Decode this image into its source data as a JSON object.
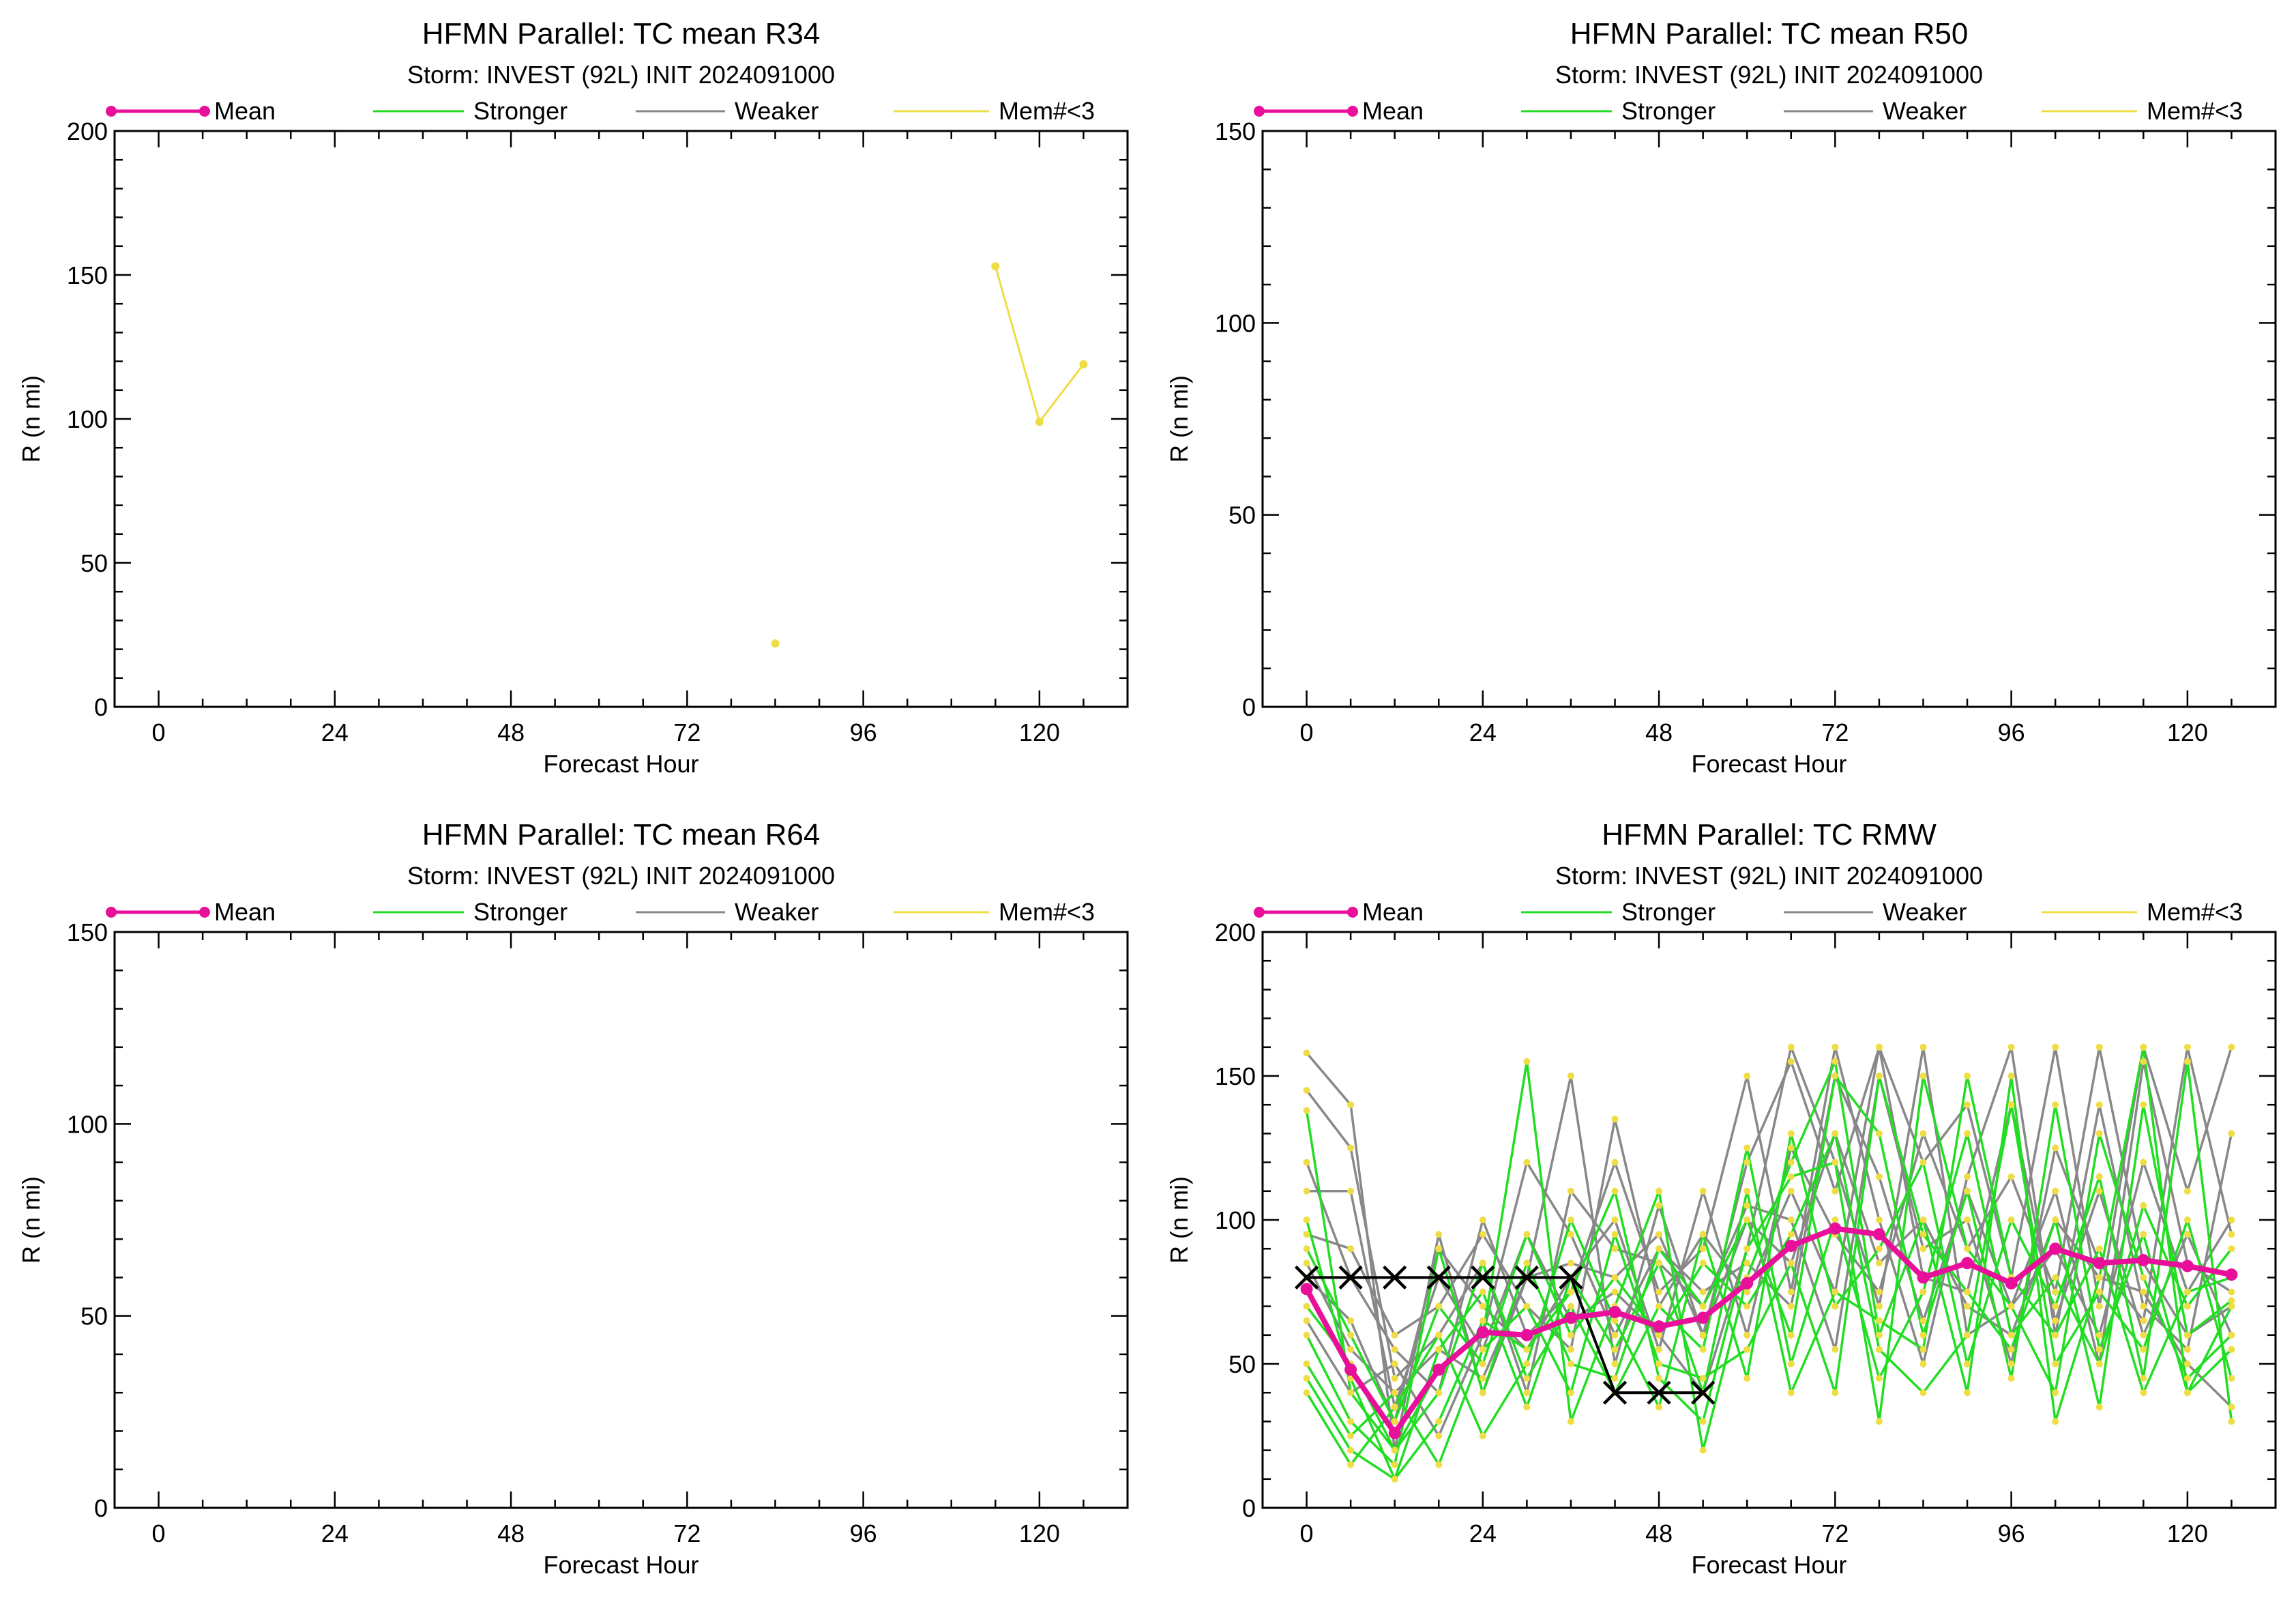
{
  "chart_data": [
    {
      "id": "r34",
      "type": "line",
      "title": "HFMN Parallel: TC mean R34",
      "subtitle": "Storm: INVEST (92L) INIT 2024091000",
      "xlabel": "Forecast Hour",
      "ylabel": "R (n mi)",
      "xlim": [
        -6,
        132
      ],
      "ylim": [
        0,
        200
      ],
      "xticks": [
        0,
        24,
        48,
        72,
        96,
        120
      ],
      "yticks": [
        0,
        50,
        100,
        150,
        200
      ],
      "legend": [
        {
          "name": "Mean",
          "color": "#e8109a",
          "marker": true
        },
        {
          "name": "Stronger",
          "color": "#22dd22"
        },
        {
          "name": "Weaker",
          "color": "#888888"
        },
        {
          "name": "Mem#<3",
          "color": "#eedd44"
        }
      ],
      "series": [
        {
          "kind": "mem",
          "x": [
            84
          ],
          "y": [
            22
          ]
        },
        {
          "kind": "mem",
          "x": [
            114,
            120,
            126
          ],
          "y": [
            153,
            99,
            119
          ]
        }
      ]
    },
    {
      "id": "r50",
      "type": "line",
      "title": "HFMN Parallel: TC mean R50",
      "subtitle": "Storm: INVEST (92L) INIT 2024091000",
      "xlabel": "Forecast Hour",
      "ylabel": "R (n mi)",
      "xlim": [
        -6,
        132
      ],
      "ylim": [
        0,
        150
      ],
      "xticks": [
        0,
        24,
        48,
        72,
        96,
        120
      ],
      "yticks": [
        0,
        50,
        100,
        150
      ],
      "legend": [
        {
          "name": "Mean",
          "color": "#e8109a",
          "marker": true
        },
        {
          "name": "Stronger",
          "color": "#22dd22"
        },
        {
          "name": "Weaker",
          "color": "#888888"
        },
        {
          "name": "Mem#<3",
          "color": "#eedd44"
        }
      ],
      "series": []
    },
    {
      "id": "r64",
      "type": "line",
      "title": "HFMN Parallel: TC mean R64",
      "subtitle": "Storm: INVEST (92L) INIT 2024091000",
      "xlabel": "Forecast Hour",
      "ylabel": "R (n mi)",
      "xlim": [
        -6,
        132
      ],
      "ylim": [
        0,
        150
      ],
      "xticks": [
        0,
        24,
        48,
        72,
        96,
        120
      ],
      "yticks": [
        0,
        50,
        100,
        150
      ],
      "legend": [
        {
          "name": "Mean",
          "color": "#e8109a",
          "marker": true
        },
        {
          "name": "Stronger",
          "color": "#22dd22"
        },
        {
          "name": "Weaker",
          "color": "#888888"
        },
        {
          "name": "Mem#<3",
          "color": "#eedd44"
        }
      ],
      "series": []
    },
    {
      "id": "rmw",
      "type": "line",
      "title": "HFMN Parallel: TC RMW",
      "subtitle": "Storm: INVEST (92L) INIT 2024091000",
      "xlabel": "Forecast Hour",
      "ylabel": "R (n mi)",
      "xlim": [
        -6,
        132
      ],
      "ylim": [
        0,
        200
      ],
      "xticks": [
        0,
        24,
        48,
        72,
        96,
        120
      ],
      "yticks": [
        0,
        50,
        100,
        150,
        200
      ],
      "legend": [
        {
          "name": "Mean",
          "color": "#e8109a",
          "marker": true
        },
        {
          "name": "Stronger",
          "color": "#22dd22"
        },
        {
          "name": "Weaker",
          "color": "#888888"
        },
        {
          "name": "Mem#<3",
          "color": "#eedd44"
        }
      ],
      "x_common": [
        0,
        6,
        12,
        18,
        24,
        30,
        36,
        42,
        48,
        54,
        60,
        66,
        72,
        78,
        84,
        90,
        96,
        102,
        108,
        114,
        120,
        126
      ],
      "mean": {
        "x": [
          0,
          6,
          12,
          18,
          24,
          30,
          36,
          42,
          48,
          54,
          60,
          66,
          72,
          78,
          84,
          90,
          96,
          102,
          108,
          114,
          120,
          126
        ],
        "y": [
          76,
          48,
          26,
          48,
          61,
          60,
          66,
          68,
          63,
          66,
          78,
          91,
          97,
          95,
          80,
          85,
          78,
          90,
          85,
          86,
          84,
          81
        ]
      },
      "cross_track": {
        "x": [
          0,
          6,
          12,
          18,
          24,
          30,
          36,
          42,
          48,
          54
        ],
        "y": [
          80,
          80,
          80,
          80,
          80,
          80,
          80,
          40,
          40,
          40
        ]
      },
      "stronger": [
        [
          138,
          40,
          20,
          48,
          60,
          155,
          30,
          70,
          110,
          20,
          80,
          120,
          155,
          60,
          100,
          40,
          150,
          30,
          80,
          160,
          40,
          70
        ],
        [
          45,
          20,
          10,
          30,
          65,
          55,
          75,
          110,
          45,
          30,
          90,
          115,
          120,
          30,
          150,
          90,
          70,
          40,
          130,
          80,
          45,
          60
        ],
        [
          60,
          30,
          15,
          90,
          40,
          85,
          50,
          45,
          90,
          70,
          100,
          60,
          150,
          130,
          60,
          110,
          45,
          140,
          55,
          95,
          40,
          55
        ],
        [
          40,
          15,
          35,
          60,
          25,
          50,
          100,
          65,
          35,
          95,
          45,
          130,
          70,
          90,
          120,
          50,
          100,
          70,
          115,
          45,
          155,
          30
        ],
        [
          70,
          50,
          20,
          40,
          85,
          45,
          70,
          40,
          70,
          55,
          125,
          50,
          100,
          45,
          75,
          130,
          60,
          80,
          50,
          105,
          70,
          90
        ],
        [
          90,
          60,
          30,
          70,
          50,
          95,
          60,
          80,
          60,
          85,
          70,
          95,
          130,
          55,
          40,
          60,
          140,
          50,
          75,
          55,
          100,
          45
        ],
        [
          50,
          25,
          40,
          15,
          55,
          70,
          40,
          95,
          50,
          45,
          55,
          85,
          40,
          150,
          95,
          75,
          55,
          100,
          35,
          140,
          60,
          72
        ],
        [
          100,
          45,
          10,
          55,
          75,
          35,
          80,
          55,
          85,
          40,
          110,
          40,
          75,
          65,
          55,
          150,
          80,
          60,
          90,
          40,
          75,
          80
        ]
      ],
      "weaker": [
        [
          158,
          140,
          20,
          95,
          40,
          80,
          150,
          50,
          105,
          60,
          120,
          155,
          110,
          160,
          120,
          140,
          80,
          160,
          70,
          160,
          110,
          160
        ],
        [
          120,
          80,
          55,
          40,
          100,
          60,
          75,
          120,
          75,
          90,
          150,
          75,
          160,
          100,
          50,
          115,
          160,
          60,
          140,
          70,
          55,
          130
        ],
        [
          110,
          110,
          35,
          80,
          55,
          95,
          65,
          75,
          60,
          40,
          90,
          160,
          120,
          70,
          160,
          60,
          70,
          110,
          50,
          155,
          85,
          75
        ],
        [
          145,
          125,
          45,
          60,
          85,
          40,
          110,
          90,
          85,
          70,
          105,
          100,
          55,
          150,
          90,
          100,
          50,
          125,
          85,
          65,
          160,
          95
        ],
        [
          80,
          65,
          30,
          90,
          70,
          55,
          80,
          100,
          55,
          110,
          60,
          125,
          95,
          75,
          130,
          90,
          115,
          75,
          160,
          85,
          60,
          70
        ],
        [
          65,
          40,
          50,
          25,
          60,
          120,
          95,
          60,
          90,
          75,
          85,
          70,
          150,
          115,
          65,
          110,
          70,
          90,
          60,
          120,
          75,
          100
        ],
        [
          95,
          90,
          60,
          70,
          95,
          70,
          55,
          135,
          70,
          95,
          75,
          110,
          75,
          160,
          80,
          75,
          140,
          65,
          110,
          60,
          95,
          60
        ],
        [
          85,
          55,
          40,
          55,
          45,
          80,
          85,
          80,
          95,
          60,
          100,
          85,
          130,
          85,
          100,
          70,
          60,
          100,
          80,
          75,
          50,
          35
        ]
      ]
    }
  ]
}
